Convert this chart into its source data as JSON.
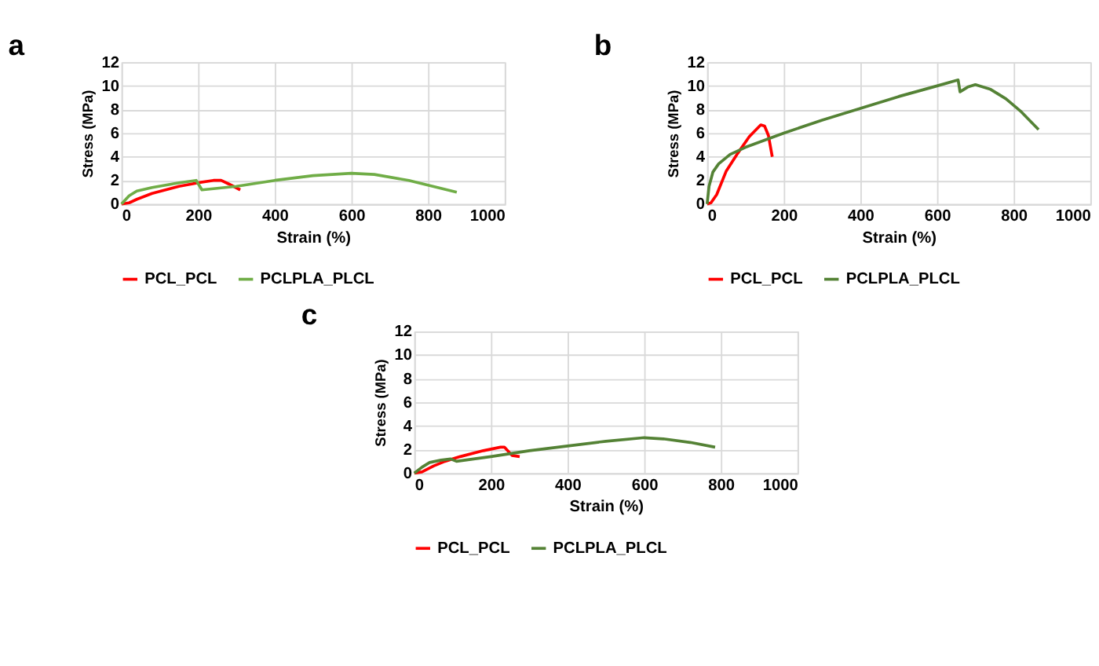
{
  "chart_data": [
    {
      "type": "line",
      "title": "a",
      "xlabel": "Strain (%)",
      "ylabel": "Stress (MPa)",
      "xlim": [
        0,
        1000
      ],
      "xticks": [
        0,
        200,
        400,
        600,
        800,
        1000
      ],
      "ylim": [
        0,
        12
      ],
      "yticks": [
        0,
        2,
        4,
        6,
        8,
        10,
        12
      ],
      "grid": true,
      "legend": "bottom",
      "marker": "none",
      "line_style": "solid",
      "series": [
        {
          "name": "PCL_PCL",
          "color": "#ff0000",
          "x": [
            0,
            20,
            40,
            80,
            150,
            200,
            240,
            260,
            280,
            310
          ],
          "values": [
            0,
            0.1,
            0.4,
            0.9,
            1.5,
            1.8,
            2.0,
            2.0,
            1.7,
            1.2
          ]
        },
        {
          "name": "PCLPLA_PLCL",
          "color": "#70ad47",
          "x": [
            0,
            20,
            40,
            80,
            150,
            195,
            210,
            300,
            400,
            500,
            600,
            660,
            750,
            875
          ],
          "values": [
            0,
            0.7,
            1.1,
            1.4,
            1.8,
            2.0,
            1.2,
            1.5,
            2.0,
            2.4,
            2.6,
            2.5,
            2.0,
            1.0
          ]
        }
      ]
    },
    {
      "type": "line",
      "title": "b",
      "xlabel": "Strain (%)",
      "ylabel": "Stress (MPa)",
      "xlim": [
        0,
        1000
      ],
      "xticks": [
        0,
        200,
        400,
        600,
        800,
        1000
      ],
      "ylim": [
        0,
        12
      ],
      "yticks": [
        0,
        2,
        4,
        6,
        8,
        10,
        12
      ],
      "grid": true,
      "legend": "bottom",
      "marker": "none",
      "line_style": "solid",
      "series": [
        {
          "name": "PCL_PCL",
          "color": "#ff0000",
          "x": [
            0,
            10,
            25,
            50,
            80,
            110,
            140,
            150,
            160,
            170
          ],
          "values": [
            0,
            0.1,
            0.8,
            2.8,
            4.3,
            5.7,
            6.7,
            6.6,
            5.8,
            4.0
          ]
        },
        {
          "name": "PCLPLA_PLCL",
          "color": "#548235",
          "x": [
            0,
            5,
            15,
            30,
            60,
            100,
            200,
            300,
            400,
            500,
            600,
            655,
            660,
            680,
            700,
            740,
            780,
            820,
            865
          ],
          "values": [
            0,
            1.5,
            2.7,
            3.4,
            4.2,
            4.8,
            6.0,
            7.1,
            8.1,
            9.1,
            10.0,
            10.5,
            9.5,
            9.9,
            10.1,
            9.7,
            8.9,
            7.8,
            6.3
          ]
        }
      ]
    },
    {
      "type": "line",
      "title": "c",
      "xlabel": "Strain (%)",
      "ylabel": "Stress (MPa)",
      "xlim": [
        0,
        1000
      ],
      "xticks": [
        0,
        200,
        400,
        600,
        800,
        1000
      ],
      "ylim": [
        0,
        12
      ],
      "yticks": [
        0,
        2,
        4,
        6,
        8,
        10,
        12
      ],
      "grid": true,
      "legend": "bottom",
      "marker": "none",
      "line_style": "solid",
      "series": [
        {
          "name": "PCL_PCL",
          "color": "#ff0000",
          "x": [
            0,
            20,
            50,
            80,
            120,
            180,
            225,
            235,
            255,
            275
          ],
          "values": [
            0,
            0.1,
            0.6,
            1.0,
            1.4,
            1.9,
            2.2,
            2.2,
            1.5,
            1.4
          ]
        },
        {
          "name": "PCLPLA_PLCL",
          "color": "#548235",
          "x": [
            0,
            20,
            40,
            70,
            95,
            110,
            200,
            300,
            400,
            500,
            600,
            650,
            720,
            785
          ],
          "values": [
            0,
            0.5,
            0.9,
            1.1,
            1.2,
            1.0,
            1.4,
            1.9,
            2.3,
            2.7,
            3.0,
            2.9,
            2.6,
            2.2
          ]
        }
      ]
    }
  ]
}
